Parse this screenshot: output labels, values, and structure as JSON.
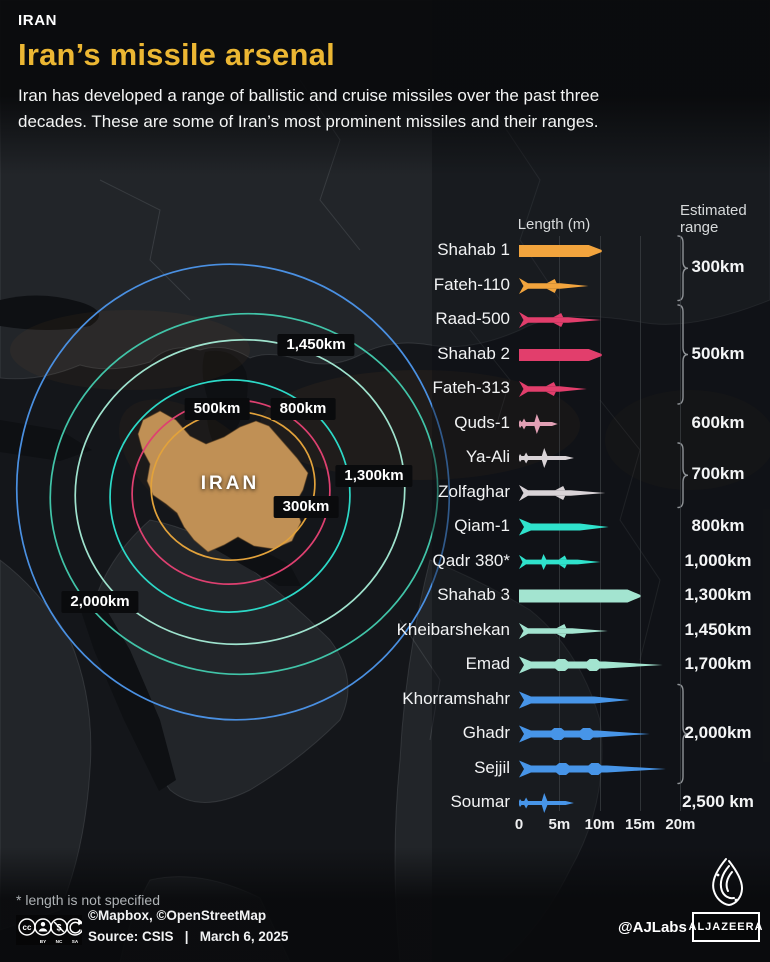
{
  "header": {
    "kicker": "IRAN",
    "title": "Iran’s missile arsenal",
    "subtitle": "Iran has developed a range of ballistic and cruise missiles over the past three decades. These are some of Iran’s most prominent missiles and their ranges."
  },
  "map": {
    "country_label": "IRAN",
    "rings": [
      {
        "label": "300km",
        "color": "#e2a23b"
      },
      {
        "label": "500km",
        "color": "#de4070"
      },
      {
        "label": "800km",
        "color": "#2cd9c7"
      },
      {
        "label": "1,300km",
        "color": "#9fe3ce"
      },
      {
        "label": "1,450km",
        "color": "#41c4a8"
      },
      {
        "label": "2,000km",
        "color": "#4a90e2"
      }
    ],
    "country_color": "#c09055"
  },
  "chart_data": {
    "type": "bar",
    "title": "Length (m)",
    "xlabel": "Length (m)",
    "range_header": "Estimated range",
    "x_range": [
      0,
      20
    ],
    "x_ticks": [
      {
        "v": 0,
        "label": "0"
      },
      {
        "v": 5,
        "label": "5m"
      },
      {
        "v": 10,
        "label": "10m"
      },
      {
        "v": 15,
        "label": "15m"
      },
      {
        "v": 20,
        "label": "20m"
      }
    ],
    "grid": true,
    "missiles": [
      {
        "name": "Shahab 1",
        "length_m": 10.5,
        "range_km": "300km",
        "color": "#f2a43d",
        "shape": "block",
        "bumps": false
      },
      {
        "name": "Fateh-110",
        "length_m": 8.6,
        "range_km": "300km",
        "color": "#f2a43d",
        "shape": "finned",
        "bumps": false
      },
      {
        "name": "Raad-500",
        "length_m": 10.2,
        "range_km": "500km",
        "color": "#e23e6c",
        "shape": "finned",
        "bumps": false
      },
      {
        "name": "Shahab 2",
        "length_m": 10.5,
        "range_km": "500km",
        "color": "#e23e6c",
        "shape": "block",
        "bumps": false
      },
      {
        "name": "Fateh-313",
        "length_m": 8.4,
        "range_km": "500km",
        "color": "#e23e6c",
        "shape": "finned",
        "bumps": false
      },
      {
        "name": "Quds-1",
        "length_m": 4.8,
        "range_km": "600km",
        "color": "#e2a0b5",
        "shape": "cruise",
        "bumps": false
      },
      {
        "name": "Ya-Ali",
        "length_m": 6.8,
        "range_km": "700km",
        "color": "#d9d3d7",
        "shape": "cruise",
        "bumps": false
      },
      {
        "name": "Zolfaghar",
        "length_m": 10.7,
        "range_km": "700km",
        "color": "#d9d3d7",
        "shape": "finned",
        "bumps": false
      },
      {
        "name": "Qiam-1",
        "length_m": 11.1,
        "range_km": "800km",
        "color": "#2fe2cc",
        "shape": "flared",
        "bumps": false
      },
      {
        "name": "Qadr 380*",
        "length_m": 10.1,
        "range_km": "1,000km",
        "color": "#2fe2cc",
        "shape": "cruise2",
        "bumps": false
      },
      {
        "name": "Shahab 3",
        "length_m": 15.3,
        "range_km": "1,300km",
        "color": "#a3e4d0",
        "shape": "block",
        "bumps": false
      },
      {
        "name": "Kheibarshekan",
        "length_m": 11.0,
        "range_km": "1,450km",
        "color": "#a3e4d0",
        "shape": "finned",
        "bumps": false
      },
      {
        "name": "Emad",
        "length_m": 17.8,
        "range_km": "1,700km",
        "color": "#a3e4d0",
        "shape": "flared",
        "bumps": true
      },
      {
        "name": "Khorramshahr",
        "length_m": 13.7,
        "range_km": "2,000km",
        "color": "#4795e8",
        "shape": "flared",
        "bumps": false
      },
      {
        "name": "Ghadr",
        "length_m": 16.2,
        "range_km": "2,000km",
        "color": "#4795e8",
        "shape": "flared",
        "bumps": true
      },
      {
        "name": "Sejjil",
        "length_m": 18.2,
        "range_km": "2,000km",
        "color": "#4795e8",
        "shape": "flared",
        "bumps": true
      },
      {
        "name": "Soumar",
        "length_m": 6.8,
        "range_km": "2,500 km",
        "color": "#4795e8",
        "shape": "cruise",
        "bumps": false
      }
    ],
    "range_groups": [
      {
        "label": "300km",
        "from": 0,
        "to": 1,
        "bracket": true
      },
      {
        "label": "500km",
        "from": 2,
        "to": 4,
        "bracket": true
      },
      {
        "label": "600km",
        "from": 5,
        "to": 5,
        "bracket": false
      },
      {
        "label": "700km",
        "from": 6,
        "to": 7,
        "bracket": true
      },
      {
        "label": "800km",
        "from": 8,
        "to": 8,
        "bracket": false
      },
      {
        "label": "1,000km",
        "from": 9,
        "to": 9,
        "bracket": false
      },
      {
        "label": "1,300km",
        "from": 10,
        "to": 10,
        "bracket": false
      },
      {
        "label": "1,450km",
        "from": 11,
        "to": 11,
        "bracket": false
      },
      {
        "label": "1,700km",
        "from": 12,
        "to": 12,
        "bracket": false
      },
      {
        "label": "2,000km",
        "from": 13,
        "to": 15,
        "bracket": true
      },
      {
        "label": "2,500 km",
        "from": 16,
        "to": 16,
        "bracket": false
      }
    ]
  },
  "footer": {
    "note": "* length is not specified",
    "map_attribution": "©Mapbox, ©OpenStreetMap",
    "source_line": "Source: CSIS   |   March 6, 2025",
    "credit": "@AJLabs",
    "logo_text": "ALJAZEERA",
    "license_labels": [
      "BY",
      "NC",
      "SA"
    ]
  }
}
